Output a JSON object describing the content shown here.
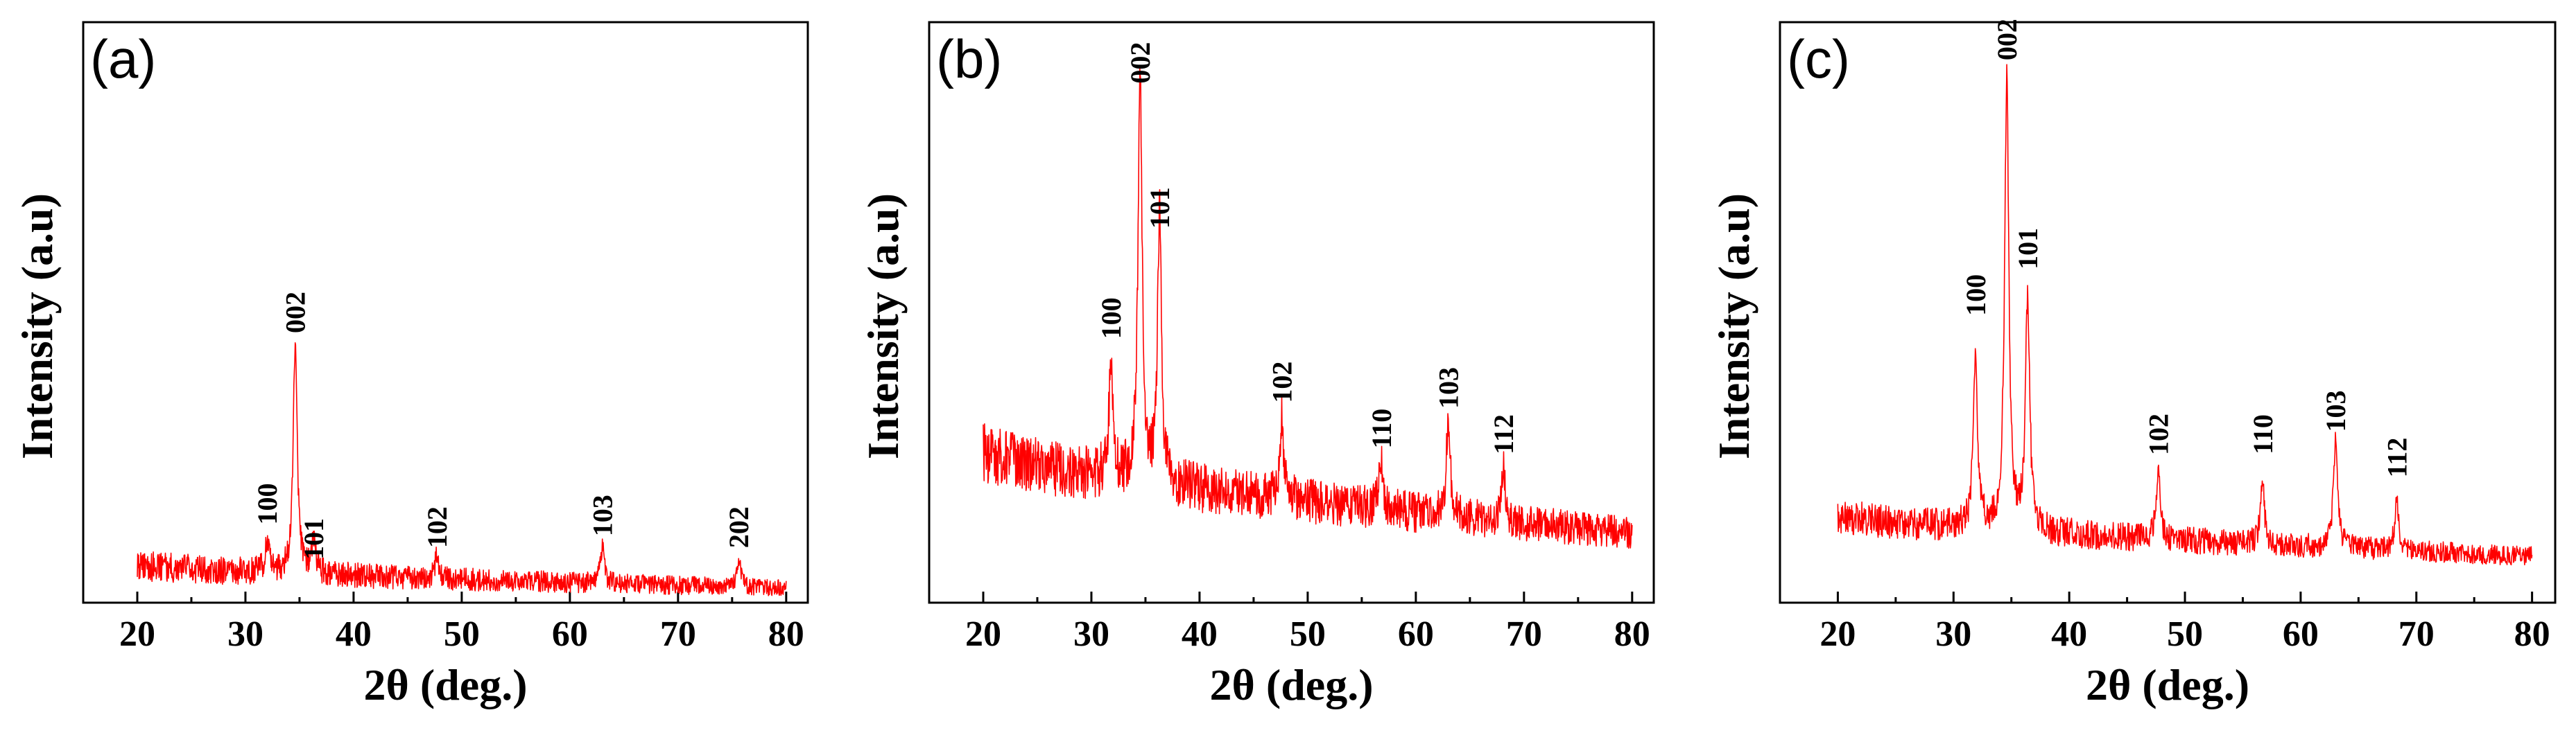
{
  "chart_data": [
    {
      "type": "line",
      "panel_label": "(a)",
      "xlabel": "2θ (deg.)",
      "ylabel": "Intensity (a.u)",
      "xlim": [
        15,
        82
      ],
      "ylim": [
        0,
        100
      ],
      "xticks": [
        20,
        30,
        40,
        50,
        60,
        70,
        80
      ],
      "x_range": [
        20,
        80
      ],
      "baseline": {
        "start": 6.5,
        "end": 2.5,
        "noise": 2.6
      },
      "peaks": [
        {
          "label": "100",
          "x": 32.0,
          "height": 5,
          "label_y": 17
        },
        {
          "label": "002",
          "x": 34.6,
          "height": 40,
          "label_y": 50
        },
        {
          "label": "101",
          "x": 36.3,
          "height": 6,
          "label_y": 11
        },
        {
          "label": "102",
          "x": 47.7,
          "height": 4,
          "label_y": 13
        },
        {
          "label": "103",
          "x": 63.0,
          "height": 6,
          "label_y": 15
        },
        {
          "label": "202",
          "x": 75.6,
          "height": 5,
          "label_y": 13
        }
      ]
    },
    {
      "type": "line",
      "panel_label": "(b)",
      "xlabel": "2θ (deg.)",
      "ylabel": "Intensity (a.u)",
      "xlim": [
        15,
        82
      ],
      "ylim": [
        0,
        100
      ],
      "xticks": [
        20,
        30,
        40,
        50,
        60,
        70,
        80
      ],
      "x_range": [
        20,
        80
      ],
      "baseline": {
        "start": 26,
        "end": 12,
        "noise": 5
      },
      "peaks": [
        {
          "label": "100",
          "x": 31.8,
          "height": 19,
          "label_y": 49
        },
        {
          "label": "002",
          "x": 34.5,
          "height": 72,
          "label_y": 93
        },
        {
          "label": "101",
          "x": 36.3,
          "height": 46,
          "label_y": 68
        },
        {
          "label": "102",
          "x": 47.6,
          "height": 14,
          "label_y": 38
        },
        {
          "label": "110",
          "x": 56.8,
          "height": 8,
          "label_y": 30
        },
        {
          "label": "103",
          "x": 63.0,
          "height": 17,
          "label_y": 37
        },
        {
          "label": "112",
          "x": 68.1,
          "height": 9,
          "label_y": 29
        }
      ]
    },
    {
      "type": "line",
      "panel_label": "(c)",
      "xlabel": "2θ (deg.)",
      "ylabel": "Intensity (a.u)",
      "xlim": [
        15,
        82
      ],
      "ylim": [
        0,
        100
      ],
      "xticks": [
        20,
        30,
        40,
        50,
        60,
        70,
        80
      ],
      "x_range": [
        20,
        80
      ],
      "baseline": {
        "start": 15,
        "end": 8,
        "noise": 3
      },
      "peaks": [
        {
          "label": "100",
          "x": 31.9,
          "height": 29,
          "label_y": 53
        },
        {
          "label": "002",
          "x": 34.6,
          "height": 77,
          "label_y": 97
        },
        {
          "label": "101",
          "x": 36.4,
          "height": 40,
          "label_y": 61
        },
        {
          "label": "102",
          "x": 47.7,
          "height": 11,
          "label_y": 29
        },
        {
          "label": "110",
          "x": 56.7,
          "height": 10,
          "label_y": 29
        },
        {
          "label": "103",
          "x": 63.0,
          "height": 18,
          "label_y": 33
        },
        {
          "label": "112",
          "x": 68.3,
          "height": 8,
          "label_y": 25
        }
      ]
    }
  ]
}
